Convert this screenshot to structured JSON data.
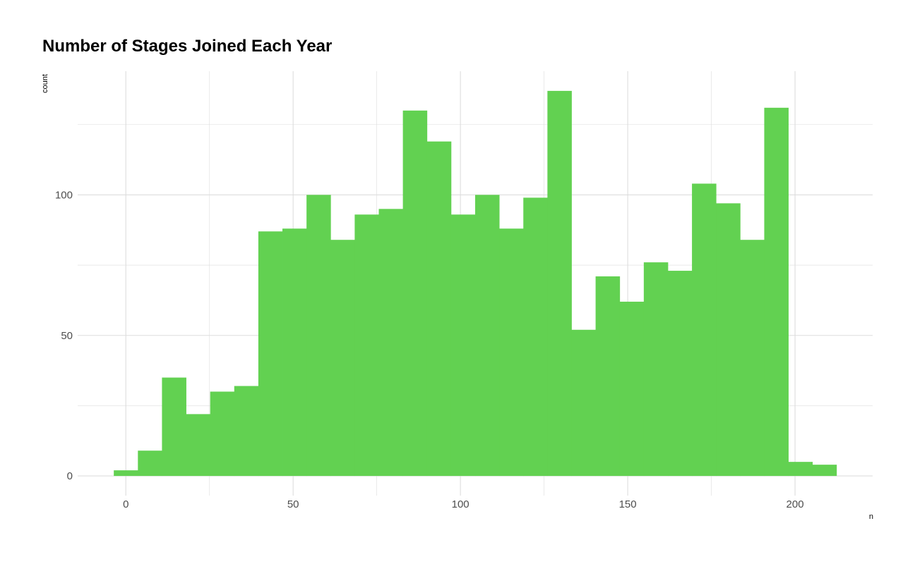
{
  "chart_data": {
    "type": "bar",
    "title": "Number of Stages Joined Each Year",
    "xlabel": "n",
    "ylabel": "count",
    "bar_color": "#62d151",
    "grid_color": "#dddddd",
    "tick_label_color": "#4d4d4d",
    "bins": [
      {
        "x0": -3.6,
        "x1": 3.6,
        "count": 2
      },
      {
        "x0": 3.6,
        "x1": 10.8,
        "count": 9
      },
      {
        "x0": 10.8,
        "x1": 18.0,
        "count": 35
      },
      {
        "x0": 18.0,
        "x1": 25.2,
        "count": 22
      },
      {
        "x0": 25.2,
        "x1": 32.4,
        "count": 30
      },
      {
        "x0": 32.4,
        "x1": 39.6,
        "count": 32
      },
      {
        "x0": 39.6,
        "x1": 46.8,
        "count": 87
      },
      {
        "x0": 46.8,
        "x1": 54.0,
        "count": 88
      },
      {
        "x0": 54.0,
        "x1": 61.2,
        "count": 100
      },
      {
        "x0": 61.2,
        "x1": 68.4,
        "count": 84
      },
      {
        "x0": 68.4,
        "x1": 75.6,
        "count": 93
      },
      {
        "x0": 75.6,
        "x1": 82.8,
        "count": 95
      },
      {
        "x0": 82.8,
        "x1": 90.0,
        "count": 130
      },
      {
        "x0": 90.0,
        "x1": 97.2,
        "count": 119
      },
      {
        "x0": 97.2,
        "x1": 104.4,
        "count": 93
      },
      {
        "x0": 104.4,
        "x1": 111.6,
        "count": 100
      },
      {
        "x0": 111.6,
        "x1": 118.8,
        "count": 88
      },
      {
        "x0": 118.8,
        "x1": 126.0,
        "count": 99
      },
      {
        "x0": 126.0,
        "x1": 133.2,
        "count": 137
      },
      {
        "x0": 133.2,
        "x1": 140.4,
        "count": 52
      },
      {
        "x0": 140.4,
        "x1": 147.6,
        "count": 71
      },
      {
        "x0": 147.6,
        "x1": 154.8,
        "count": 62
      },
      {
        "x0": 154.8,
        "x1": 162.0,
        "count": 76
      },
      {
        "x0": 162.0,
        "x1": 169.2,
        "count": 73
      },
      {
        "x0": 169.2,
        "x1": 176.4,
        "count": 104
      },
      {
        "x0": 176.4,
        "x1": 183.6,
        "count": 97
      },
      {
        "x0": 183.6,
        "x1": 190.8,
        "count": 84
      },
      {
        "x0": 190.8,
        "x1": 198.0,
        "count": 131
      },
      {
        "x0": 198.0,
        "x1": 205.2,
        "count": 5
      },
      {
        "x0": 205.2,
        "x1": 212.4,
        "count": 4
      }
    ],
    "xlim": [
      -14.4,
      223.2
    ],
    "ylim": [
      -7,
      144
    ],
    "x_ticks": [
      0,
      50,
      100,
      150,
      200
    ],
    "x_tick_labels": [
      "0",
      "50",
      "100",
      "150",
      "200"
    ],
    "x_minor_ticks": [
      25,
      75,
      125,
      175
    ],
    "y_ticks": [
      0,
      50,
      100
    ],
    "y_tick_labels": [
      "0",
      "50",
      "100"
    ],
    "y_minor_ticks": [
      25,
      75,
      125
    ],
    "grid": true,
    "legend": "none"
  }
}
